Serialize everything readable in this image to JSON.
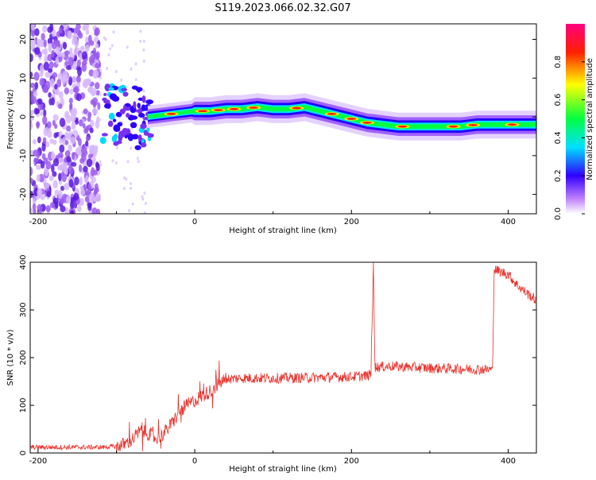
{
  "title": "S119.2023.066.02.32.G07",
  "chart_data": [
    {
      "type": "heatmap",
      "xlabel": "Height of straight line (km)",
      "ylabel": "Frequency (Hz)",
      "xlim": [
        -210,
        436
      ],
      "ylim": [
        -25,
        24
      ],
      "x_ticks": [
        -200,
        0,
        200,
        400
      ],
      "y_ticks": [
        -20,
        -10,
        0,
        10,
        20
      ],
      "colorbar": {
        "label": "Normalized spectral amplitude",
        "range": [
          0,
          1
        ],
        "ticks": [
          0.0,
          0.2,
          0.4,
          0.6,
          0.8
        ],
        "colors": [
          "#ffffff",
          "#c080ff",
          "#3000ff",
          "#00e0ff",
          "#00ff40",
          "#ffff00",
          "#ff2000",
          "#ff0080"
        ]
      },
      "ridge": {
        "x": [
          -120,
          -95,
          -75,
          -60,
          -40,
          -20,
          0,
          20,
          40,
          60,
          80,
          100,
          120,
          140,
          160,
          180,
          200,
          220,
          240,
          260,
          280,
          300,
          320,
          340,
          360,
          380,
          400,
          420,
          436
        ],
        "frequency": [
          0,
          1,
          -1,
          0,
          0.5,
          1,
          1.5,
          1.5,
          2,
          2,
          2.5,
          2,
          2,
          2.5,
          1.5,
          0.5,
          -0.5,
          -1.5,
          -2,
          -2.5,
          -2.5,
          -2.5,
          -2.5,
          -2.5,
          -2,
          -2,
          -2,
          -2,
          -2
        ]
      }
    },
    {
      "type": "line",
      "xlabel": "Height of straight line (km)",
      "ylabel": "SNR (10 * v/v)",
      "xlim": [
        -210,
        436
      ],
      "ylim": [
        0,
        400
      ],
      "x_ticks": [
        -200,
        0,
        200,
        400
      ],
      "y_ticks": [
        0,
        100,
        200,
        300,
        400
      ],
      "series": [
        {
          "color": "#e8302a",
          "x": [
            -210,
            -150,
            -120,
            -100,
            -90,
            -80,
            -70,
            -60,
            -50,
            -40,
            -30,
            -20,
            -10,
            0,
            10,
            20,
            30,
            40,
            60,
            80,
            100,
            150,
            200,
            220,
            225,
            226,
            228,
            230,
            250,
            300,
            350,
            378,
            380,
            382,
            390,
            400,
            410,
            420,
            436
          ],
          "values": [
            12,
            12,
            12,
            14,
            18,
            28,
            45,
            42,
            30,
            40,
            60,
            85,
            100,
            110,
            120,
            130,
            145,
            155,
            157,
            157,
            157,
            158,
            160,
            162,
            165,
            260,
            395,
            180,
            182,
            178,
            176,
            175,
            170,
            385,
            380,
            375,
            355,
            340,
            320
          ]
        }
      ]
    }
  ]
}
